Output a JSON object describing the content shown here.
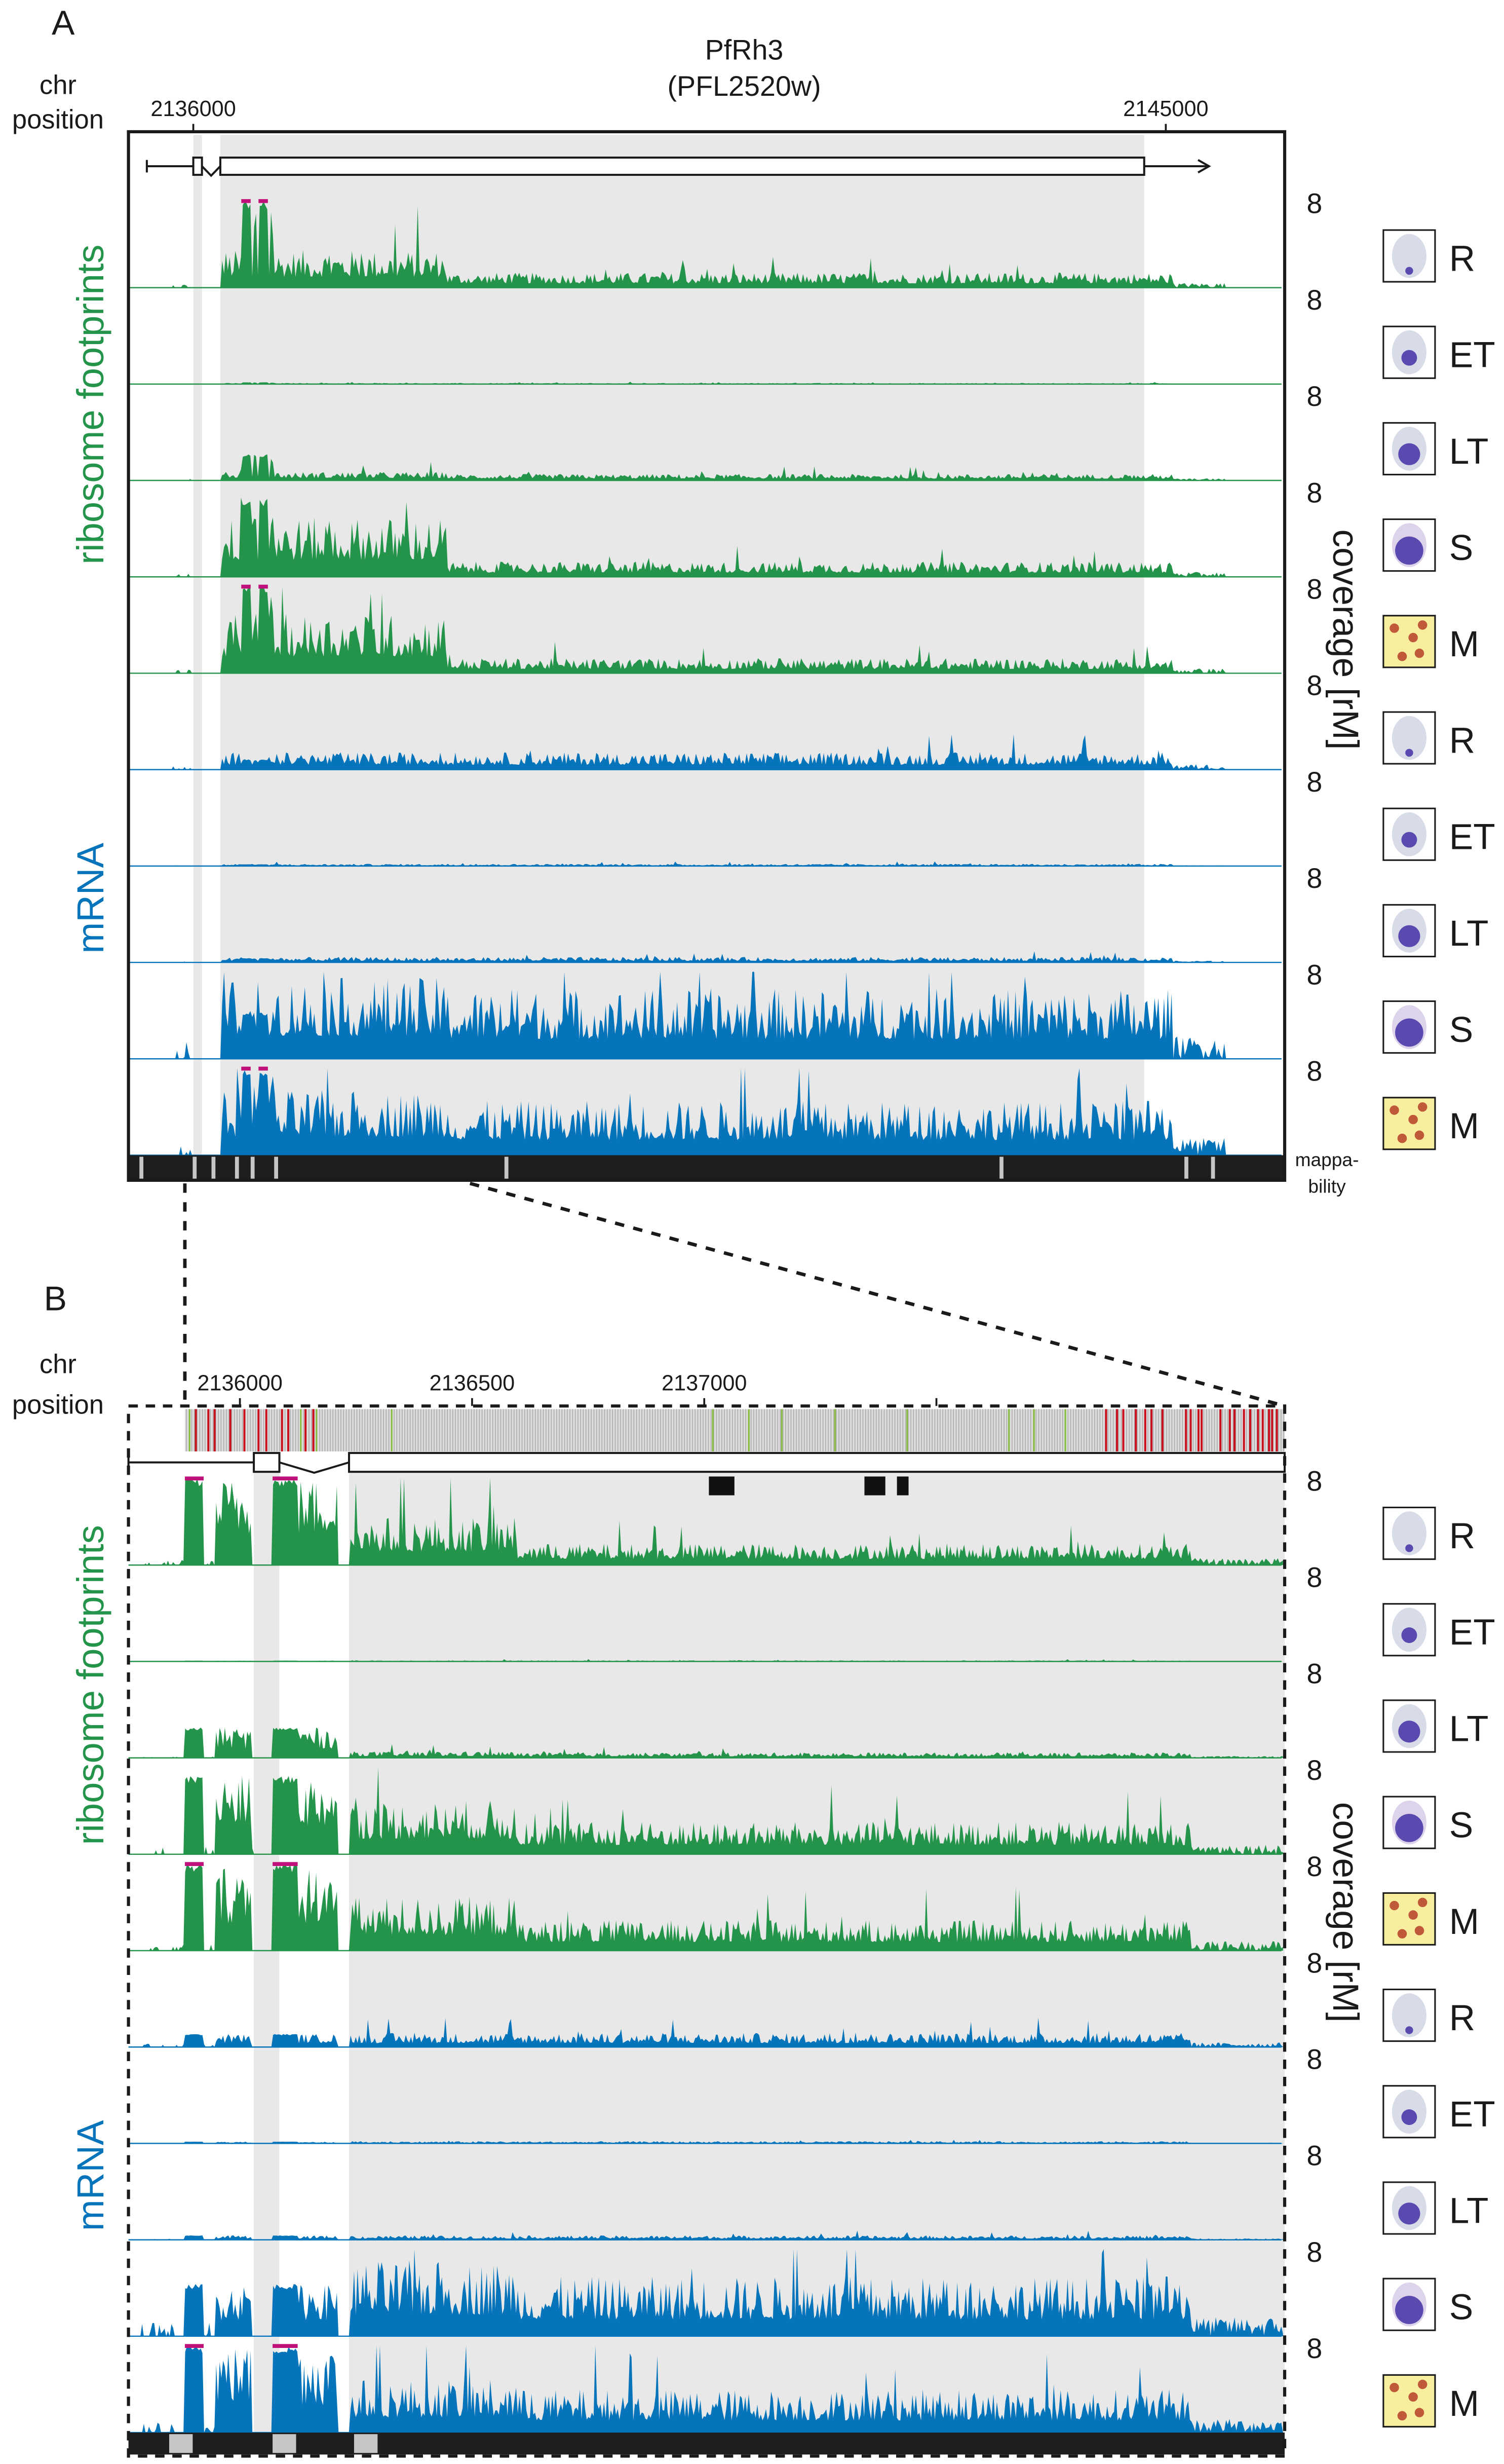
{
  "figure": {
    "panel_a_letter": "A",
    "panel_b_letter": "B",
    "gene_name": "PfRh3",
    "gene_id": "(PFL2520w)",
    "chr_label_line1": "chr",
    "chr_label_line2": "position",
    "group_labels": {
      "ribosome": "ribosome footprints",
      "mrna": "mRNA"
    },
    "coverage_axis_label": "coverage [rM]",
    "mappability_line1": "mappa-",
    "mappability_line2": "bility",
    "track_max_label": "8",
    "colors": {
      "ribosome": "#23944a",
      "mrna": "#0574bb",
      "clipped_marker": "#c0117a",
      "cds_shade": "#e8e8e8",
      "variant_bg": "#c4c4c4",
      "variant_red": "#c8101e",
      "variant_green": "#86bd3c",
      "mappability_bar": "#1e1e1c"
    }
  },
  "chart_data": [
    {
      "type": "area",
      "panel": "A",
      "title": "PfRh3 (PFL2520w)",
      "xlabel": "chr position",
      "ylabel": "coverage [rM]",
      "x_ticks": [
        {
          "label": "2136000",
          "value": 2136000
        },
        {
          "label": "2145000",
          "value": 2145000
        }
      ],
      "xlim": [
        2135400,
        2146100
      ],
      "ylim": [
        0,
        8
      ],
      "stages": [
        "R",
        "ET",
        "LT",
        "S",
        "M"
      ],
      "gene_model": {
        "utr_start": 2135570,
        "exon1": [
          2136000,
          2136080
        ],
        "exon2": [
          2136250,
          2144800
        ],
        "end_arrow": 2145400
      },
      "series": [
        {
          "name": "ribosome footprints R",
          "group": "ribosome",
          "stage": "R",
          "level": 0.14,
          "utr_peak": 1.0,
          "early_cds": 0.35,
          "clipped": true
        },
        {
          "name": "ribosome footprints ET",
          "group": "ribosome",
          "stage": "ET",
          "level": 0.01,
          "utr_peak": 0.02,
          "early_cds": 0.01,
          "clipped": false
        },
        {
          "name": "ribosome footprints LT",
          "group": "ribosome",
          "stage": "LT",
          "level": 0.06,
          "utr_peak": 0.3,
          "early_cds": 0.08,
          "clipped": false
        },
        {
          "name": "ribosome footprints S",
          "group": "ribosome",
          "stage": "S",
          "level": 0.14,
          "utr_peak": 0.9,
          "early_cds": 0.55,
          "clipped": false
        },
        {
          "name": "ribosome footprints M",
          "group": "ribosome",
          "stage": "M",
          "level": 0.14,
          "utr_peak": 1.0,
          "early_cds": 0.55,
          "clipped": true
        },
        {
          "name": "mRNA R",
          "group": "mrna",
          "stage": "R",
          "level": 0.16,
          "utr_peak": 0.12,
          "early_cds": 0.16,
          "clipped": false
        },
        {
          "name": "mRNA ET",
          "group": "mrna",
          "stage": "ET",
          "level": 0.02,
          "utr_peak": 0.02,
          "early_cds": 0.02,
          "clipped": false
        },
        {
          "name": "mRNA LT",
          "group": "mrna",
          "stage": "LT",
          "level": 0.05,
          "utr_peak": 0.05,
          "early_cds": 0.05,
          "clipped": false
        },
        {
          "name": "mRNA S",
          "group": "mrna",
          "stage": "S",
          "level": 0.65,
          "utr_peak": 0.55,
          "early_cds": 0.75,
          "clipped": false
        },
        {
          "name": "mRNA M",
          "group": "mrna",
          "stage": "M",
          "level": 0.5,
          "utr_peak": 1.0,
          "early_cds": 0.6,
          "clipped": true
        }
      ]
    },
    {
      "type": "area",
      "panel": "B",
      "xlabel": "chr position",
      "ylabel": "coverage [rM]",
      "x_ticks": [
        {
          "label": "2136000",
          "value": 2136000
        },
        {
          "label": "2136500",
          "value": 2136500
        },
        {
          "label": "2137000",
          "value": 2137000
        },
        {
          "label": "",
          "value": 2137500
        }
      ],
      "xlim": [
        2135760,
        2138250
      ],
      "ylim": [
        0,
        8
      ],
      "stages": [
        "R",
        "ET",
        "LT",
        "S",
        "M"
      ],
      "gene_model": {
        "utr_start": 2135760,
        "exon1": [
          2136030,
          2136085
        ],
        "exon2": [
          2136235,
          2138250
        ]
      },
      "domain_blocks": [
        [
          2137010,
          2137065
        ],
        [
          2137345,
          2137390
        ],
        [
          2137415,
          2137440
        ]
      ],
      "variants_red_count": 32,
      "variants_green_count": 12,
      "series": [
        {
          "name": "ribosome footprints R",
          "group": "ribosome",
          "stage": "R",
          "level": 0.2,
          "utr_peak": 1.0,
          "early_cds": 0.45,
          "clipped": true
        },
        {
          "name": "ribosome footprints ET",
          "group": "ribosome",
          "stage": "ET",
          "level": 0.01,
          "utr_peak": 0.01,
          "early_cds": 0.01,
          "clipped": false
        },
        {
          "name": "ribosome footprints LT",
          "group": "ribosome",
          "stage": "LT",
          "level": 0.05,
          "utr_peak": 0.35,
          "early_cds": 0.06,
          "clipped": false
        },
        {
          "name": "ribosome footprints S",
          "group": "ribosome",
          "stage": "S",
          "level": 0.3,
          "utr_peak": 0.9,
          "early_cds": 0.5,
          "clipped": false
        },
        {
          "name": "ribosome footprints M",
          "group": "ribosome",
          "stage": "M",
          "level": 0.28,
          "utr_peak": 1.0,
          "early_cds": 0.5,
          "clipped": true
        },
        {
          "name": "mRNA R",
          "group": "mrna",
          "stage": "R",
          "level": 0.13,
          "utr_peak": 0.15,
          "early_cds": 0.13,
          "clipped": false
        },
        {
          "name": "mRNA ET",
          "group": "mrna",
          "stage": "ET",
          "level": 0.02,
          "utr_peak": 0.02,
          "early_cds": 0.02,
          "clipped": false
        },
        {
          "name": "mRNA LT",
          "group": "mrna",
          "stage": "LT",
          "level": 0.04,
          "utr_peak": 0.05,
          "early_cds": 0.04,
          "clipped": false
        },
        {
          "name": "mRNA S",
          "group": "mrna",
          "stage": "S",
          "level": 0.55,
          "utr_peak": 0.6,
          "early_cds": 0.7,
          "clipped": false
        },
        {
          "name": "mRNA M",
          "group": "mrna",
          "stage": "M",
          "level": 0.4,
          "utr_peak": 1.0,
          "early_cds": 0.5,
          "clipped": true
        }
      ]
    }
  ]
}
